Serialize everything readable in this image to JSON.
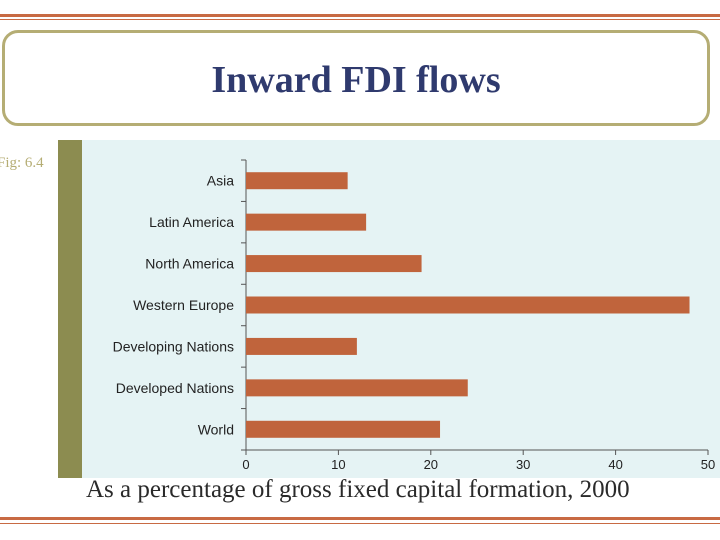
{
  "slide": {
    "title": "Inward FDI flows",
    "figure_label": "Fig: 6.4",
    "caption": "As a percentage of gross fixed capital formation, 2000"
  },
  "colors": {
    "bar": "#c0643c",
    "rule": "#c86a43",
    "title_border": "#b5ad74",
    "title_text": "#2f3a6e",
    "chart_background": "#e5f3f4",
    "side_bar": "#8c8c50"
  },
  "chart_data": {
    "type": "bar",
    "orientation": "horizontal",
    "categories": [
      "Asia",
      "Latin America",
      "North America",
      "Western Europe",
      "Developing Nations",
      "Developed Nations",
      "World"
    ],
    "values": [
      11,
      13,
      19,
      48,
      12,
      24,
      21
    ],
    "x_ticks": [
      0,
      10,
      20,
      30,
      40,
      50
    ],
    "xlim": [
      0,
      50
    ],
    "title": "",
    "xlabel": "As a percentage of gross fixed capital formation, 2000",
    "ylabel": "",
    "grid": false,
    "legend": "none"
  }
}
